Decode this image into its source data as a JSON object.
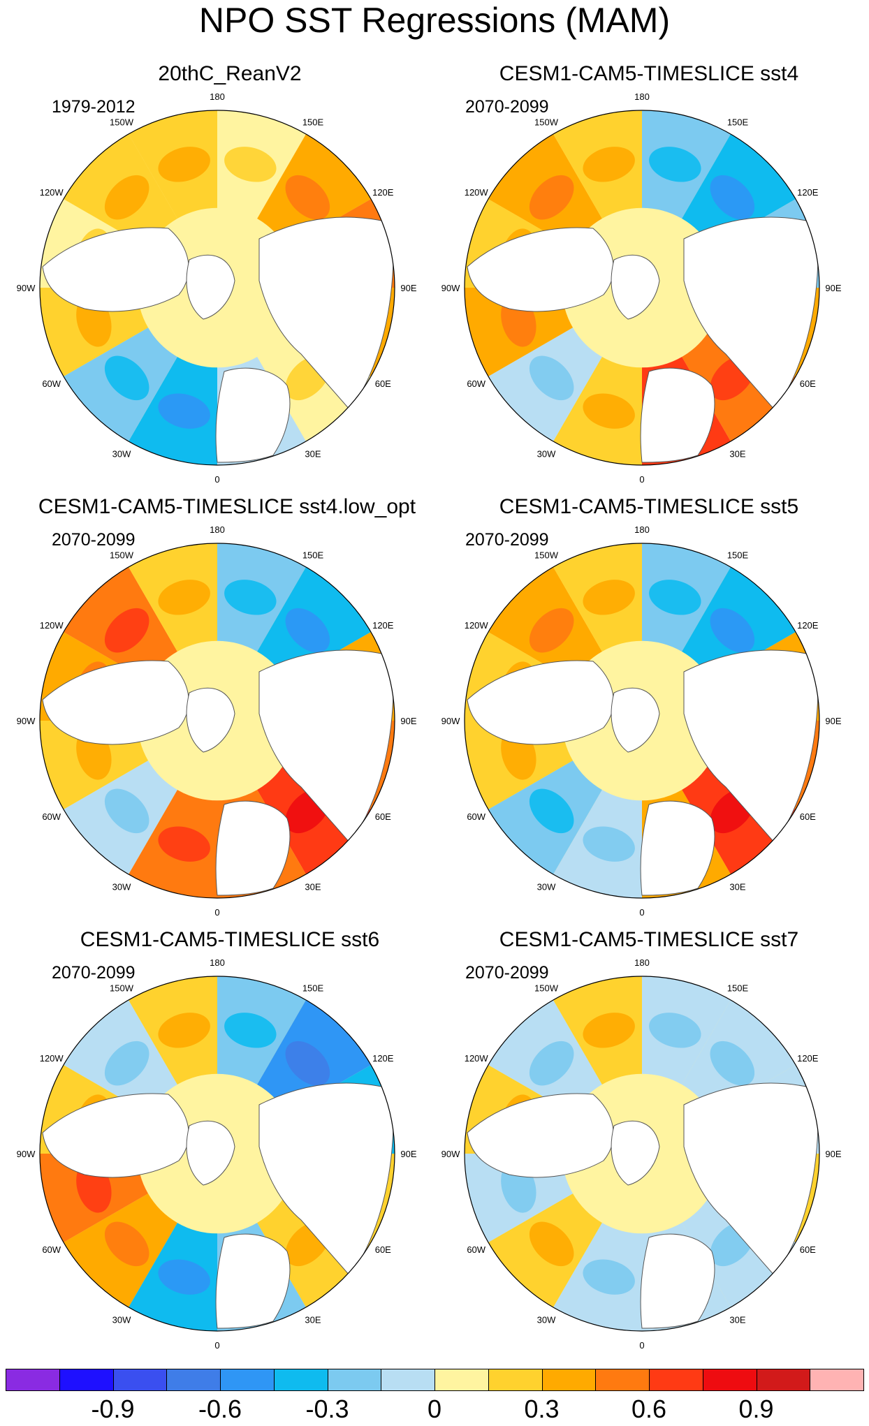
{
  "figure": {
    "title": "NPO SST Regressions (MAM)"
  },
  "lon_labels": [
    "180",
    "150E",
    "120E",
    "90E",
    "60E",
    "30E",
    "0",
    "30W",
    "60W",
    "90W",
    "120W",
    "150W"
  ],
  "panels": [
    {
      "id": "p1",
      "title": "20thC_ReanV2",
      "period": "1979-2012",
      "pattern": [
        0,
        0.3,
        0.45,
        0.3,
        0,
        -0.15,
        -0.45,
        -0.3,
        0.15,
        0,
        0.15,
        0.15
      ]
    },
    {
      "id": "p2",
      "title": "CESM1-CAM5-TIMESLICE sst4",
      "period": "2070-2099",
      "pattern": [
        -0.3,
        -0.45,
        -0.3,
        0.3,
        0.45,
        0.6,
        0.15,
        -0.15,
        0.3,
        0.15,
        0.3,
        0.15
      ]
    },
    {
      "id": "p3",
      "title": "CESM1-CAM5-TIMESLICE sst4.low_opt",
      "period": "2070-2099",
      "pattern": [
        -0.3,
        -0.45,
        0.3,
        0.45,
        0.6,
        0.45,
        0.45,
        -0.15,
        0.15,
        0.3,
        0.45,
        0.15
      ]
    },
    {
      "id": "p4",
      "title": "CESM1-CAM5-TIMESLICE sst5",
      "period": "2070-2099",
      "pattern": [
        -0.3,
        -0.45,
        0.3,
        0.45,
        0.6,
        0.3,
        -0.15,
        -0.3,
        0.15,
        0.15,
        0.3,
        0.15
      ]
    },
    {
      "id": "p5",
      "title": "CESM1-CAM5-TIMESLICE sst6",
      "period": "2070-2099",
      "pattern": [
        -0.3,
        -0.6,
        -0.45,
        0.15,
        0.15,
        -0.3,
        -0.45,
        0.3,
        0.45,
        0.15,
        -0.15,
        0.15
      ]
    },
    {
      "id": "p6",
      "title": "CESM1-CAM5-TIMESLICE sst7",
      "period": "2070-2099",
      "pattern": [
        -0.15,
        -0.15,
        -0.15,
        0.15,
        -0.15,
        -0.15,
        -0.15,
        0.15,
        -0.15,
        0.15,
        -0.15,
        0.15
      ]
    }
  ],
  "colorbar": {
    "colors": [
      "#8a2be2",
      "#1e10ff",
      "#3a4ff0",
      "#3f7de8",
      "#2f96f5",
      "#0fbbef",
      "#7ccaf0",
      "#b8def3",
      "#fff4a0",
      "#ffd22e",
      "#ffaa00",
      "#ff7a10",
      "#ff3a14",
      "#ee0c10",
      "#d21a1a",
      "#ffb3b3"
    ],
    "tick_labels": [
      "-0.9",
      "-0.6",
      "-0.3",
      "0",
      "0.3",
      "0.6",
      "0.9"
    ]
  }
}
